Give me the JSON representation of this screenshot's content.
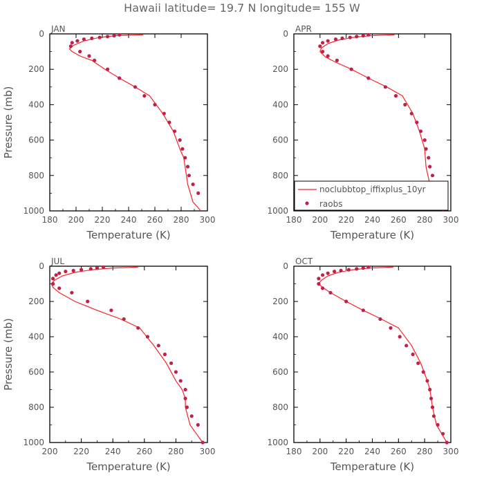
{
  "title": "Hawaii  latitude= 19.7 N longitude= 155 W",
  "colors": {
    "model_line": "#ff2020",
    "raobs_marker": "#c0204a",
    "axis": "#000000",
    "text": "#555555"
  },
  "legend": {
    "model_label": "noclubbtop_iffixplus_10yr",
    "obs_label": "raobs",
    "placement": "lower-left of APR panel"
  },
  "chart_data": [
    {
      "type": "line",
      "panel": "JAN",
      "xlabel": "Temperature (K)",
      "ylabel": "Pressure (mb)",
      "xlim": [
        180,
        300
      ],
      "ylim": [
        1000,
        0
      ],
      "xticks": [
        180,
        200,
        220,
        240,
        260,
        280,
        300
      ],
      "yticks": [
        0,
        200,
        400,
        600,
        800,
        1000
      ],
      "series": [
        {
          "name": "noclubbtop_iffixplus_10yr",
          "style": "line",
          "x": [
            251,
            230,
            218,
            206,
            198,
            195,
            197,
            203,
            212,
            222,
            233,
            245,
            256,
            266,
            274,
            279,
            282,
            283,
            285,
            289,
            295
          ],
          "y": [
            5,
            10,
            20,
            40,
            65,
            85,
            100,
            125,
            150,
            200,
            250,
            300,
            350,
            450,
            550,
            650,
            700,
            750,
            850,
            950,
            1000
          ]
        },
        {
          "name": "raobs",
          "style": "markers",
          "x": [
            233,
            229,
            224,
            218,
            212,
            206,
            201,
            197,
            196,
            203,
            210,
            214,
            224,
            233,
            245,
            252,
            260,
            267,
            271,
            275,
            279,
            281,
            283,
            285,
            286,
            289,
            293
          ],
          "y": [
            5,
            10,
            15,
            20,
            25,
            30,
            40,
            50,
            70,
            100,
            125,
            150,
            200,
            250,
            300,
            350,
            400,
            450,
            500,
            550,
            600,
            650,
            700,
            750,
            800,
            850,
            900
          ]
        }
      ]
    },
    {
      "type": "line",
      "panel": "APR",
      "xlabel": "Temperature (K)",
      "ylabel": "",
      "xlim": [
        180,
        300
      ],
      "ylim": [
        1000,
        0
      ],
      "xticks": [
        180,
        200,
        220,
        240,
        260,
        280,
        300
      ],
      "yticks": [
        0,
        200,
        400,
        600,
        800,
        1000
      ],
      "series": [
        {
          "name": "noclubbtop_iffixplus_10yr",
          "style": "line",
          "x": [
            257,
            238,
            225,
            214,
            206,
            201,
            200,
            204,
            212,
            224,
            237,
            251,
            263,
            271,
            276,
            280,
            281,
            284,
            288,
            294
          ],
          "y": [
            5,
            10,
            20,
            35,
            55,
            80,
            100,
            130,
            160,
            200,
            250,
            300,
            350,
            450,
            550,
            650,
            750,
            850,
            950,
            1000
          ]
        },
        {
          "name": "raobs",
          "style": "markers",
          "x": [
            237,
            233,
            228,
            223,
            217,
            212,
            206,
            202,
            200,
            202,
            206,
            213,
            224,
            237,
            250,
            258,
            265,
            270,
            274,
            277,
            280,
            281,
            283,
            284,
            286,
            289,
            293
          ],
          "y": [
            5,
            10,
            15,
            20,
            25,
            30,
            40,
            50,
            70,
            100,
            125,
            150,
            200,
            250,
            300,
            350,
            400,
            450,
            500,
            550,
            600,
            650,
            700,
            750,
            800,
            850,
            900
          ]
        }
      ]
    },
    {
      "type": "line",
      "panel": "JUL",
      "xlabel": "Temperature (K)",
      "ylabel": "Pressure (mb)",
      "xlim": [
        200,
        300
      ],
      "ylim": [
        1000,
        0
      ],
      "xticks": [
        200,
        220,
        240,
        260,
        280,
        300
      ],
      "yticks": [
        0,
        200,
        400,
        600,
        800,
        1000
      ],
      "series": [
        {
          "name": "noclubbtop_iffixplus_10yr",
          "style": "line",
          "x": [
            256,
            240,
            227,
            216,
            208,
            203,
            201,
            202,
            206,
            216,
            230,
            245,
            257,
            266,
            274,
            280,
            284,
            286,
            286,
            289,
            293,
            297
          ],
          "y": [
            5,
            10,
            20,
            35,
            55,
            80,
            100,
            120,
            150,
            200,
            250,
            300,
            350,
            450,
            550,
            650,
            700,
            750,
            800,
            900,
            950,
            1000
          ]
        },
        {
          "name": "raobs",
          "style": "markers",
          "x": [
            234,
            230,
            226,
            220,
            215,
            210,
            206,
            204,
            202,
            202,
            206,
            214,
            224,
            239,
            247,
            256,
            262,
            269,
            273,
            277,
            280,
            283,
            286,
            286,
            287,
            290,
            294,
            297
          ],
          "y": [
            5,
            10,
            15,
            20,
            25,
            30,
            40,
            50,
            70,
            100,
            125,
            150,
            200,
            250,
            300,
            350,
            400,
            450,
            500,
            550,
            600,
            650,
            700,
            750,
            800,
            850,
            900,
            1000
          ]
        }
      ]
    },
    {
      "type": "line",
      "panel": "OCT",
      "xlabel": "Temperature (K)",
      "ylabel": "",
      "xlim": [
        180,
        300
      ],
      "ylim": [
        1000,
        0
      ],
      "xticks": [
        180,
        200,
        220,
        240,
        260,
        280,
        300
      ],
      "yticks": [
        0,
        200,
        400,
        600,
        800,
        1000
      ],
      "series": [
        {
          "name": "noclubbtop_iffixplus_10yr",
          "style": "line",
          "x": [
            256,
            238,
            225,
            214,
            206,
            201,
            199,
            202,
            208,
            220,
            233,
            247,
            260,
            270,
            277,
            282,
            284,
            285,
            286,
            289,
            293,
            297
          ],
          "y": [
            5,
            10,
            20,
            35,
            55,
            80,
            100,
            120,
            150,
            200,
            250,
            300,
            350,
            450,
            550,
            650,
            700,
            750,
            800,
            900,
            950,
            1000
          ]
        },
        {
          "name": "raobs",
          "style": "markers",
          "x": [
            237,
            233,
            228,
            222,
            216,
            211,
            206,
            202,
            199,
            199,
            202,
            208,
            220,
            233,
            246,
            254,
            261,
            266,
            271,
            275,
            279,
            282,
            284,
            285,
            286,
            287,
            290,
            294,
            297
          ],
          "y": [
            5,
            10,
            15,
            20,
            25,
            30,
            40,
            50,
            70,
            100,
            125,
            150,
            200,
            250,
            300,
            350,
            400,
            450,
            500,
            550,
            600,
            650,
            700,
            750,
            800,
            850,
            900,
            950,
            1000
          ]
        }
      ]
    }
  ]
}
